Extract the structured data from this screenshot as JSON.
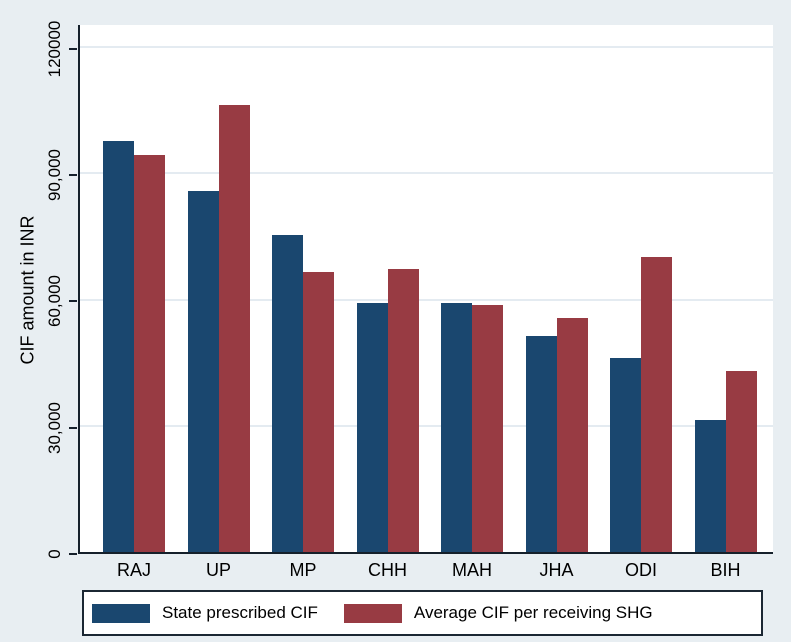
{
  "figure": {
    "background": "#e8eef2",
    "plot_background": "#ffffff",
    "axis_color": "#15202b",
    "gridline_color": "#e4ebf1",
    "text_color": "#000000"
  },
  "chart_data": {
    "type": "bar",
    "title": "",
    "xlabel": "",
    "ylabel": "CIF amount in INR",
    "categories": [
      "RAJ",
      "UP",
      "MP",
      "CHH",
      "MAH",
      "JHA",
      "ODI",
      "BIH"
    ],
    "series": [
      {
        "name": "State prescribed CIF",
        "color": "#1a476f",
        "values": [
          97700,
          85700,
          75400,
          59200,
          59100,
          51400,
          46100,
          31400
        ]
      },
      {
        "name": "Average CIF per receiving SHG",
        "color": "#983b43",
        "values": [
          94400,
          106300,
          66600,
          67200,
          58800,
          55700,
          70100,
          43000
        ]
      }
    ],
    "ylim": [
      0,
      125700
    ],
    "yticks": [
      {
        "value": 0,
        "label": "0"
      },
      {
        "value": 30000,
        "label": "30,000"
      },
      {
        "value": 60000,
        "label": "60,000"
      },
      {
        "value": 90000,
        "label": "90,000"
      },
      {
        "value": 120000,
        "label": "120000"
      }
    ],
    "grid": "horizontal",
    "legend_position": "bottom"
  }
}
